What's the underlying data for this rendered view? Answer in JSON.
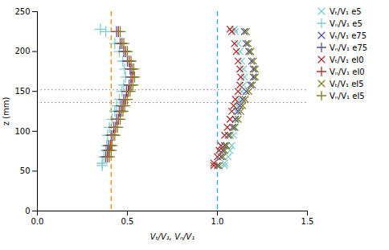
{
  "chart_data": {
    "type": "scatter",
    "xlabel": "Vₜ/V₁, Vₙ/V₁",
    "ylabel": "z (mm)",
    "xlim": [
      0,
      1.5
    ],
    "ylim": [
      0,
      250
    ],
    "xticks": [
      {
        "value": 0,
        "label": "0.0"
      },
      0.5,
      {
        "value": 1,
        "label": "1.0"
      },
      1.5
    ],
    "yticks": [
      0,
      50,
      100,
      150,
      200,
      250
    ],
    "grid": false,
    "legend": "upper right",
    "vlines": [
      {
        "x": 0.41,
        "color": "#e8960a",
        "line_style": "dashed"
      },
      {
        "x": 1.0,
        "color": "#40b8c8",
        "line_style": "dashed"
      }
    ],
    "hlines": [
      {
        "y": 152,
        "color": "#808080",
        "line_style": "dotted"
      },
      {
        "y": 136,
        "color": "#808080",
        "line_style": "dotted"
      }
    ],
    "series": [
      {
        "name": "Vₜ/V₁ e5",
        "color": "#7ecece",
        "marker": "x",
        "x": [
          1.04,
          1.04,
          1.06,
          1.07,
          1.08,
          1.09,
          1.1,
          1.1,
          1.105,
          1.11,
          1.12,
          1.135,
          1.145,
          1.15,
          1.145,
          1.135,
          1.125,
          1.115,
          1.1,
          1.095
        ],
        "values": [
          57,
          60,
          68,
          76,
          82,
          95,
          105,
          115,
          125,
          132,
          140,
          150,
          158,
          168,
          178,
          188,
          200,
          210,
          225,
          228
        ]
      },
      {
        "name": "Vₙ/V₁ e5",
        "color": "#7ecece",
        "marker": "plus",
        "x": [
          0.36,
          0.36,
          0.37,
          0.38,
          0.385,
          0.39,
          0.4,
          0.415,
          0.43,
          0.44,
          0.455,
          0.47,
          0.48,
          0.49,
          0.485,
          0.475,
          0.455,
          0.43,
          0.38,
          0.35
        ],
        "values": [
          57,
          60,
          68,
          76,
          82,
          95,
          105,
          115,
          125,
          132,
          140,
          150,
          158,
          168,
          178,
          188,
          200,
          210,
          225,
          228
        ]
      },
      {
        "name": "Vₜ/V₁ e75",
        "color": "#5050a0",
        "marker": "x",
        "x": [
          1.0,
          1.02,
          1.03,
          1.04,
          1.06,
          1.085,
          1.1,
          1.115,
          1.125,
          1.14,
          1.16,
          1.185,
          1.2,
          1.2,
          1.19,
          1.175,
          1.16,
          1.15
        ],
        "values": [
          57,
          68,
          76,
          82,
          95,
          105,
          115,
          125,
          132,
          140,
          150,
          158,
          168,
          178,
          188,
          200,
          210,
          225
        ]
      },
      {
        "name": "Vₙ/V₁ e75",
        "color": "#5050a0",
        "marker": "plus",
        "x": [
          0.38,
          0.39,
          0.395,
          0.41,
          0.425,
          0.44,
          0.455,
          0.465,
          0.48,
          0.495,
          0.51,
          0.52,
          0.515,
          0.5,
          0.48,
          0.46,
          0.44
        ],
        "values": [
          68,
          76,
          82,
          95,
          105,
          115,
          125,
          132,
          140,
          150,
          158,
          168,
          178,
          188,
          200,
          210,
          225
        ]
      },
      {
        "name": "Vₜ/V₁ eI0",
        "color": "#b03030",
        "marker": "x",
        "x": [
          0.98,
          0.98,
          1.0,
          1.01,
          1.02,
          1.04,
          1.055,
          1.07,
          1.08,
          1.09,
          1.1,
          1.115,
          1.125,
          1.13,
          1.125,
          1.115,
          1.105,
          1.095,
          1.08,
          1.07
        ],
        "values": [
          57,
          60,
          68,
          76,
          82,
          95,
          105,
          115,
          125,
          132,
          140,
          150,
          158,
          168,
          178,
          188,
          200,
          210,
          225,
          228
        ]
      },
      {
        "name": "Vₙ/V₁ eI0",
        "color": "#b03030",
        "marker": "plus",
        "x": [
          0.39,
          0.4,
          0.405,
          0.42,
          0.435,
          0.45,
          0.465,
          0.475,
          0.49,
          0.505,
          0.52,
          0.53,
          0.525,
          0.51,
          0.49,
          0.47,
          0.45
        ],
        "values": [
          68,
          76,
          82,
          95,
          105,
          115,
          125,
          132,
          140,
          150,
          158,
          168,
          178,
          188,
          200,
          210,
          225
        ]
      },
      {
        "name": "Vₜ/V₁ eI5",
        "color": "#808020",
        "marker": "x",
        "x": [
          1.01,
          1.03,
          1.04,
          1.05,
          1.07,
          1.095,
          1.115,
          1.13,
          1.14,
          1.155,
          1.175,
          1.195,
          1.21,
          1.21,
          1.2,
          1.185,
          1.17,
          1.16
        ],
        "values": [
          57,
          68,
          76,
          82,
          95,
          105,
          115,
          125,
          132,
          140,
          150,
          158,
          168,
          178,
          188,
          200,
          210,
          225
        ]
      },
      {
        "name": "Vₙ/V₁ eI5",
        "color": "#808020",
        "marker": "plus",
        "x": [
          0.4,
          0.41,
          0.415,
          0.43,
          0.445,
          0.46,
          0.475,
          0.485,
          0.5,
          0.515,
          0.53,
          0.54,
          0.535,
          0.52,
          0.5,
          0.48,
          0.46
        ],
        "values": [
          68,
          76,
          82,
          95,
          105,
          115,
          125,
          132,
          140,
          150,
          158,
          168,
          178,
          188,
          200,
          210,
          225
        ]
      }
    ]
  }
}
